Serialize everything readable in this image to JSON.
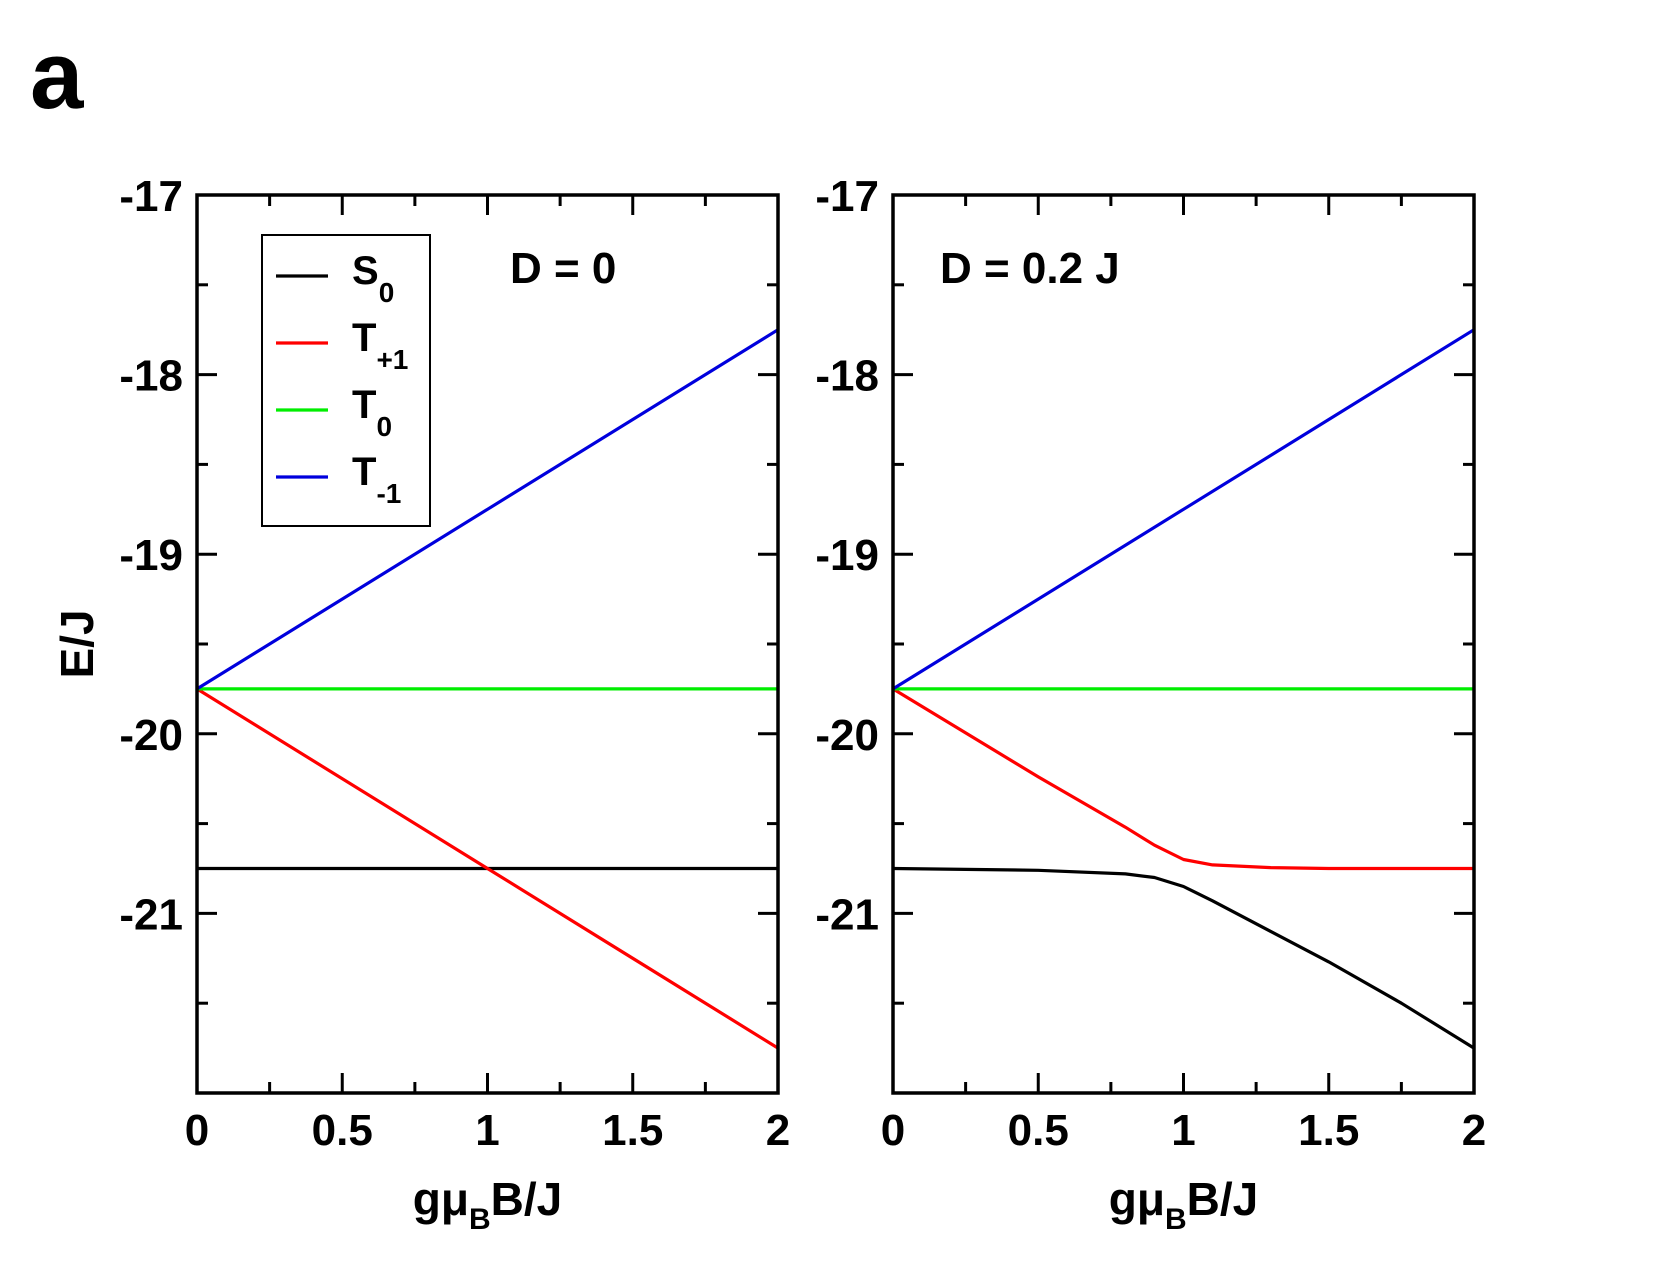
{
  "figure_label": "a",
  "colors": {
    "S0": "#000000",
    "T+1": "#ff0000",
    "T0": "#00ee00",
    "T-1": "#0000dd"
  },
  "legend": {
    "placement": "top-left of left panel",
    "entries": [
      {
        "key": "S0",
        "main": "S",
        "sub": "0"
      },
      {
        "key": "T+1",
        "main": "T",
        "sub": "+1"
      },
      {
        "key": "T0",
        "main": "T",
        "sub": "0"
      },
      {
        "key": "T-1",
        "main": "T",
        "sub": "-1"
      }
    ]
  },
  "chart_data": [
    {
      "type": "line",
      "panel": "left",
      "annotation": "D = 0",
      "ylabel": "E/J",
      "xlabel_main": "gμ",
      "xlabel_sub": "B",
      "xlabel_tail": "B/J",
      "xlim": [
        0,
        2
      ],
      "ylim": [
        -22,
        -17
      ],
      "xticks": [
        "0",
        "0.5",
        "1",
        "1.5",
        "2"
      ],
      "xtick_values": [
        0,
        0.5,
        1,
        1.5,
        2
      ],
      "yticks": [
        "-17",
        "-18",
        "-19",
        "-20",
        "-21"
      ],
      "ytick_values": [
        -17,
        -18,
        -19,
        -20,
        -21
      ],
      "grid": false,
      "series": [
        {
          "key": "S0",
          "x": [
            0,
            2
          ],
          "y": [
            -20.75,
            -20.75
          ]
        },
        {
          "key": "T+1",
          "x": [
            0,
            1,
            2
          ],
          "y": [
            -19.75,
            -20.75,
            -21.75
          ]
        },
        {
          "key": "T0",
          "x": [
            0,
            2
          ],
          "y": [
            -19.75,
            -19.75
          ]
        },
        {
          "key": "T-1",
          "x": [
            0,
            1,
            2
          ],
          "y": [
            -19.75,
            -18.75,
            -17.75
          ]
        }
      ]
    },
    {
      "type": "line",
      "panel": "right",
      "annotation": "D = 0.2 J",
      "ylabel": "",
      "xlabel_main": "gμ",
      "xlabel_sub": "B",
      "xlabel_tail": "B/J",
      "xlim": [
        0,
        2
      ],
      "ylim": [
        -22,
        -17
      ],
      "xticks": [
        "0",
        "0.5",
        "1",
        "1.5",
        "2"
      ],
      "xtick_values": [
        0,
        0.5,
        1,
        1.5,
        2
      ],
      "yticks": [
        "-17",
        "-18",
        "-19",
        "-20",
        "-21"
      ],
      "ytick_values": [
        -17,
        -18,
        -19,
        -20,
        -21
      ],
      "grid": false,
      "series": [
        {
          "key": "S0",
          "x": [
            0,
            0.5,
            0.8,
            0.9,
            1.0,
            1.1,
            1.3,
            1.5,
            1.75,
            2.0
          ],
          "y": [
            -20.75,
            -20.76,
            -20.78,
            -20.8,
            -20.85,
            -20.93,
            -21.1,
            -21.27,
            -21.5,
            -21.75
          ]
        },
        {
          "key": "T+1",
          "x": [
            0,
            0.5,
            0.8,
            0.9,
            1.0,
            1.1,
            1.3,
            1.5,
            1.75,
            2.0
          ],
          "y": [
            -19.75,
            -20.24,
            -20.52,
            -20.62,
            -20.7,
            -20.73,
            -20.745,
            -20.75,
            -20.75,
            -20.75
          ]
        },
        {
          "key": "T0",
          "x": [
            0,
            2
          ],
          "y": [
            -19.75,
            -19.75
          ]
        },
        {
          "key": "T-1",
          "x": [
            0,
            1,
            2
          ],
          "y": [
            -19.75,
            -18.75,
            -17.75
          ]
        }
      ]
    }
  ]
}
